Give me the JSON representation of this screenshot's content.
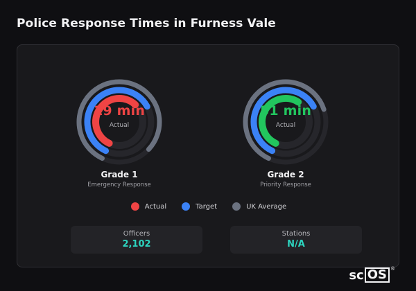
{
  "title": "Police Response Times in Furness Vale",
  "colors": {
    "actual": "#ef4444",
    "target": "#3b82f6",
    "uk_average": "#6b7280",
    "grade2_actual": "#22c55e",
    "stat_value": "#2dd4bf"
  },
  "gauges": [
    {
      "title": "Grade 1",
      "subtitle": "Emergency Response",
      "value_text": "19 min",
      "caption": "Actual",
      "value_color": "#ef4444",
      "rings": [
        {
          "series": "UK Average",
          "fraction": 0.8,
          "color": "#6b7280"
        },
        {
          "series": "Target",
          "fraction": 0.6,
          "color": "#3b82f6"
        },
        {
          "series": "Actual",
          "fraction": 0.55,
          "color": "#ef4444"
        }
      ]
    },
    {
      "title": "Grade 2",
      "subtitle": "Priority Response",
      "value_text": "51 min",
      "caption": "Actual",
      "value_color": "#22c55e",
      "rings": [
        {
          "series": "UK Average",
          "fraction": 0.63,
          "color": "#6b7280"
        },
        {
          "series": "Target",
          "fraction": 0.6,
          "color": "#3b82f6"
        },
        {
          "series": "Actual",
          "fraction": 0.52,
          "color": "#22c55e"
        }
      ]
    }
  ],
  "legend": [
    {
      "label": "Actual",
      "color": "#ef4444"
    },
    {
      "label": "Target",
      "color": "#3b82f6"
    },
    {
      "label": "UK Average",
      "color": "#6b7280"
    }
  ],
  "stats": [
    {
      "label": "Officers",
      "value": "2,102"
    },
    {
      "label": "Stations",
      "value": "N/A"
    }
  ],
  "brand": {
    "prefix": "sc",
    "boxed": "OS",
    "mark": "®"
  }
}
